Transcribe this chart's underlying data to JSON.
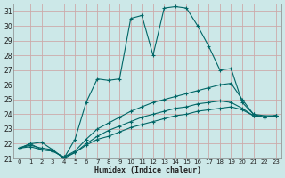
{
  "xlabel": "Humidex (Indice chaleur)",
  "bg_color": "#cce8e8",
  "line_color": "#006666",
  "grid_color": "#ccaaaa",
  "xlim": [
    -0.5,
    23.5
  ],
  "ylim": [
    21,
    31.5
  ],
  "xticks": [
    0,
    1,
    2,
    3,
    4,
    5,
    6,
    7,
    8,
    9,
    10,
    11,
    12,
    13,
    14,
    15,
    16,
    17,
    18,
    19,
    20,
    21,
    22,
    23
  ],
  "yticks": [
    21,
    22,
    23,
    24,
    25,
    26,
    27,
    28,
    29,
    30,
    31
  ],
  "lines": [
    [
      0,
      21.7,
      1,
      22.0,
      2,
      22.1,
      3,
      21.6,
      4,
      21.0,
      5,
      22.3,
      6,
      24.8,
      7,
      26.4,
      8,
      26.3,
      9,
      26.4,
      10,
      30.5,
      11,
      30.7,
      12,
      28.0,
      13,
      31.2,
      14,
      31.3,
      15,
      31.2,
      16,
      30.0,
      17,
      28.6,
      18,
      27.0,
      19,
      27.1,
      20,
      24.8,
      21,
      24.0,
      22,
      23.8,
      23,
      23.9
    ],
    [
      0,
      21.7,
      1,
      22.0,
      2,
      21.6,
      3,
      21.5,
      4,
      21.1,
      5,
      21.5,
      6,
      22.3,
      7,
      23.0,
      8,
      23.4,
      9,
      23.8,
      10,
      24.2,
      11,
      24.5,
      12,
      24.8,
      13,
      25.0,
      14,
      25.2,
      15,
      25.4,
      16,
      25.6,
      17,
      25.8,
      18,
      26.0,
      19,
      26.1,
      20,
      25.0,
      21,
      24.0,
      22,
      23.9,
      23,
      23.9
    ],
    [
      0,
      21.7,
      1,
      21.8,
      2,
      21.6,
      3,
      21.5,
      4,
      21.1,
      5,
      21.4,
      6,
      21.9,
      7,
      22.3,
      8,
      22.5,
      9,
      22.8,
      10,
      23.1,
      11,
      23.3,
      12,
      23.5,
      13,
      23.7,
      14,
      23.9,
      15,
      24.0,
      16,
      24.2,
      17,
      24.3,
      18,
      24.4,
      19,
      24.5,
      20,
      24.3,
      21,
      23.9,
      22,
      23.8,
      23,
      23.9
    ],
    [
      0,
      21.7,
      1,
      21.9,
      2,
      21.7,
      3,
      21.6,
      4,
      21.0,
      5,
      21.4,
      6,
      22.0,
      7,
      22.5,
      8,
      22.9,
      9,
      23.2,
      10,
      23.5,
      11,
      23.8,
      12,
      24.0,
      13,
      24.2,
      14,
      24.4,
      15,
      24.5,
      16,
      24.7,
      17,
      24.8,
      18,
      24.9,
      19,
      24.8,
      20,
      24.4,
      21,
      23.9,
      22,
      23.8,
      23,
      23.9
    ]
  ]
}
